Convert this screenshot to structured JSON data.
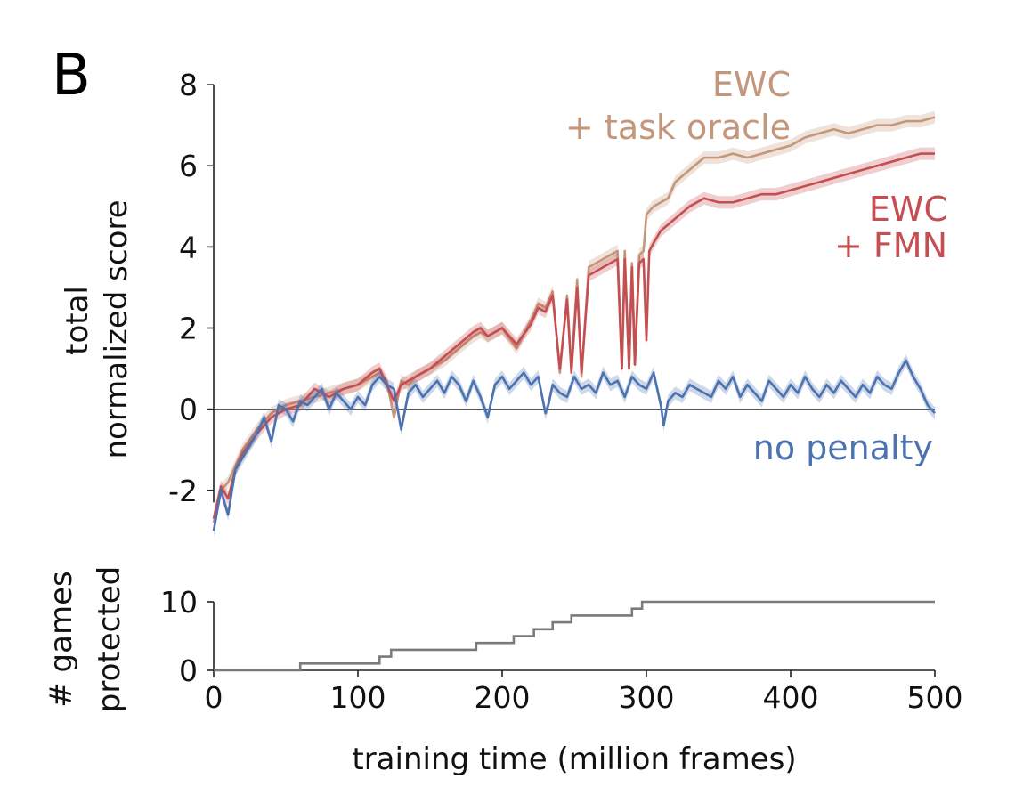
{
  "panel_label": "B",
  "colors": {
    "ewc_oracle": "#c4967a",
    "ewc_fmn": "#c44e52",
    "no_penalty": "#4c72b0",
    "games": "#7a7a7a",
    "axis": "#222222",
    "zero_line": "#555555"
  },
  "chart_data": [
    {
      "type": "line",
      "id": "score",
      "xlabel": "",
      "ylabel_lines": [
        "total",
        "normalized score"
      ],
      "xlim": [
        0,
        500
      ],
      "ylim": [
        -3.3,
        8.2
      ],
      "yticks": [
        8,
        6,
        4,
        2,
        0,
        -2
      ],
      "ytick_labels": [
        "8",
        "6",
        "4",
        "2",
        "0",
        "-2"
      ],
      "zero_line": true,
      "series": [
        {
          "name_lines": [
            "EWC",
            "+ task oracle"
          ],
          "key": "ewc_oracle",
          "x": [
            0,
            5,
            10,
            15,
            20,
            30,
            40,
            50,
            60,
            70,
            80,
            90,
            100,
            110,
            115,
            120,
            125,
            130,
            135,
            140,
            150,
            160,
            170,
            180,
            185,
            190,
            200,
            210,
            220,
            225,
            230,
            235,
            240,
            245,
            248,
            252,
            255,
            260,
            265,
            270,
            275,
            280,
            283,
            285,
            288,
            290,
            292,
            295,
            298,
            300,
            305,
            310,
            315,
            320,
            330,
            340,
            350,
            360,
            370,
            380,
            390,
            400,
            410,
            420,
            430,
            440,
            450,
            460,
            470,
            480,
            490,
            500
          ],
          "values": [
            -2.8,
            -2.0,
            -1.8,
            -1.4,
            -1.0,
            -0.5,
            -0.1,
            0.1,
            0.2,
            0.3,
            0.4,
            0.5,
            0.6,
            0.8,
            0.9,
            0.7,
            -0.2,
            0.7,
            0.6,
            0.8,
            1.0,
            1.2,
            1.5,
            1.8,
            1.9,
            1.8,
            2.0,
            1.5,
            2.2,
            2.6,
            2.5,
            2.9,
            0.9,
            2.8,
            1.0,
            3.2,
            0.8,
            3.5,
            3.6,
            3.7,
            3.8,
            3.9,
            1.0,
            3.9,
            1.0,
            3.6,
            1.1,
            3.8,
            3.9,
            4.8,
            5.0,
            5.1,
            5.2,
            5.6,
            5.9,
            6.2,
            6.2,
            6.3,
            6.2,
            6.3,
            6.4,
            6.5,
            6.7,
            6.8,
            6.9,
            6.8,
            6.9,
            7.0,
            7.0,
            7.1,
            7.1,
            7.2
          ]
        },
        {
          "name_lines": [
            "EWC",
            "+ FMN"
          ],
          "key": "ewc_fmn",
          "x": [
            0,
            5,
            10,
            15,
            20,
            30,
            40,
            50,
            60,
            70,
            80,
            90,
            100,
            110,
            115,
            120,
            125,
            130,
            140,
            150,
            160,
            170,
            180,
            185,
            190,
            200,
            210,
            220,
            225,
            230,
            235,
            240,
            245,
            248,
            252,
            255,
            260,
            265,
            270,
            275,
            280,
            283,
            285,
            288,
            290,
            292,
            295,
            298,
            300,
            302,
            305,
            310,
            320,
            330,
            340,
            350,
            360,
            370,
            380,
            390,
            400,
            410,
            420,
            430,
            440,
            450,
            460,
            470,
            480,
            490,
            500
          ],
          "values": [
            -2.7,
            -1.9,
            -2.2,
            -1.5,
            -1.1,
            -0.6,
            -0.2,
            0.0,
            0.1,
            0.5,
            0.3,
            0.5,
            0.6,
            0.9,
            1.0,
            0.6,
            0.2,
            0.6,
            0.8,
            1.0,
            1.3,
            1.6,
            1.9,
            2.0,
            1.8,
            2.0,
            1.6,
            2.1,
            2.5,
            2.4,
            2.8,
            1.0,
            2.7,
            0.9,
            3.0,
            0.9,
            3.3,
            3.4,
            3.5,
            3.6,
            3.7,
            1.0,
            3.7,
            1.0,
            3.5,
            1.1,
            3.6,
            3.7,
            1.7,
            3.9,
            4.1,
            4.4,
            4.7,
            5.0,
            5.2,
            5.1,
            5.1,
            5.2,
            5.3,
            5.3,
            5.4,
            5.5,
            5.6,
            5.7,
            5.8,
            5.9,
            6.0,
            6.1,
            6.2,
            6.3,
            6.3
          ]
        },
        {
          "name_lines": [
            "no penalty"
          ],
          "key": "no_penalty",
          "x": [
            0,
            5,
            10,
            15,
            20,
            25,
            30,
            35,
            40,
            45,
            50,
            55,
            60,
            65,
            70,
            75,
            80,
            85,
            90,
            95,
            100,
            105,
            110,
            115,
            120,
            125,
            130,
            135,
            140,
            145,
            150,
            155,
            160,
            165,
            170,
            175,
            180,
            185,
            190,
            195,
            200,
            205,
            210,
            215,
            220,
            225,
            230,
            232,
            235,
            240,
            245,
            250,
            255,
            260,
            265,
            270,
            275,
            280,
            285,
            290,
            295,
            300,
            305,
            310,
            312,
            315,
            320,
            325,
            330,
            335,
            340,
            345,
            350,
            355,
            360,
            365,
            370,
            375,
            380,
            385,
            390,
            395,
            400,
            405,
            410,
            415,
            420,
            425,
            430,
            435,
            440,
            445,
            450,
            455,
            460,
            465,
            470,
            475,
            480,
            485,
            490,
            495,
            500
          ],
          "values": [
            -3.0,
            -2.0,
            -2.6,
            -1.5,
            -1.2,
            -0.9,
            -0.6,
            -0.2,
            -0.8,
            0.1,
            0.0,
            -0.3,
            0.2,
            0.1,
            0.3,
            0.5,
            0.0,
            0.4,
            0.2,
            0.0,
            0.3,
            0.1,
            0.6,
            0.8,
            0.6,
            0.5,
            -0.5,
            0.4,
            0.6,
            0.3,
            0.5,
            0.7,
            0.4,
            0.8,
            0.6,
            0.2,
            0.7,
            0.3,
            -0.2,
            0.6,
            0.8,
            0.5,
            0.7,
            0.9,
            0.6,
            0.8,
            -0.1,
            0.1,
            0.6,
            0.4,
            0.3,
            0.8,
            0.5,
            0.6,
            0.4,
            0.9,
            0.6,
            0.7,
            0.3,
            0.8,
            0.6,
            0.5,
            0.9,
            0.1,
            -0.4,
            0.2,
            0.4,
            0.3,
            0.6,
            0.5,
            0.4,
            0.3,
            0.7,
            0.5,
            0.8,
            0.3,
            0.6,
            0.4,
            0.2,
            0.7,
            0.5,
            0.3,
            0.6,
            0.4,
            0.8,
            0.5,
            0.3,
            0.6,
            0.4,
            0.7,
            0.5,
            0.3,
            0.6,
            0.4,
            0.8,
            0.6,
            0.5,
            0.9,
            1.2,
            0.8,
            0.5,
            0.1,
            -0.1
          ]
        }
      ]
    },
    {
      "type": "line",
      "id": "games",
      "ylabel_lines": [
        "# games",
        "protected"
      ],
      "xlabel": "training time (million frames)",
      "xlim": [
        0,
        500
      ],
      "ylim": [
        0,
        10
      ],
      "xticks": [
        0,
        100,
        200,
        300,
        400,
        500
      ],
      "xtick_labels": [
        "0",
        "100",
        "200",
        "300",
        "400",
        "500"
      ],
      "yticks": [
        10,
        0
      ],
      "ytick_labels": [
        "10",
        "0"
      ],
      "series": [
        {
          "key": "games",
          "step": true,
          "x": [
            0,
            60,
            115,
            123,
            182,
            208,
            222,
            235,
            248,
            258,
            290,
            297,
            300,
            500
          ],
          "values": [
            0,
            1,
            2,
            3,
            4,
            5,
            6,
            7,
            8,
            8,
            9,
            10,
            10,
            10
          ]
        }
      ]
    }
  ]
}
